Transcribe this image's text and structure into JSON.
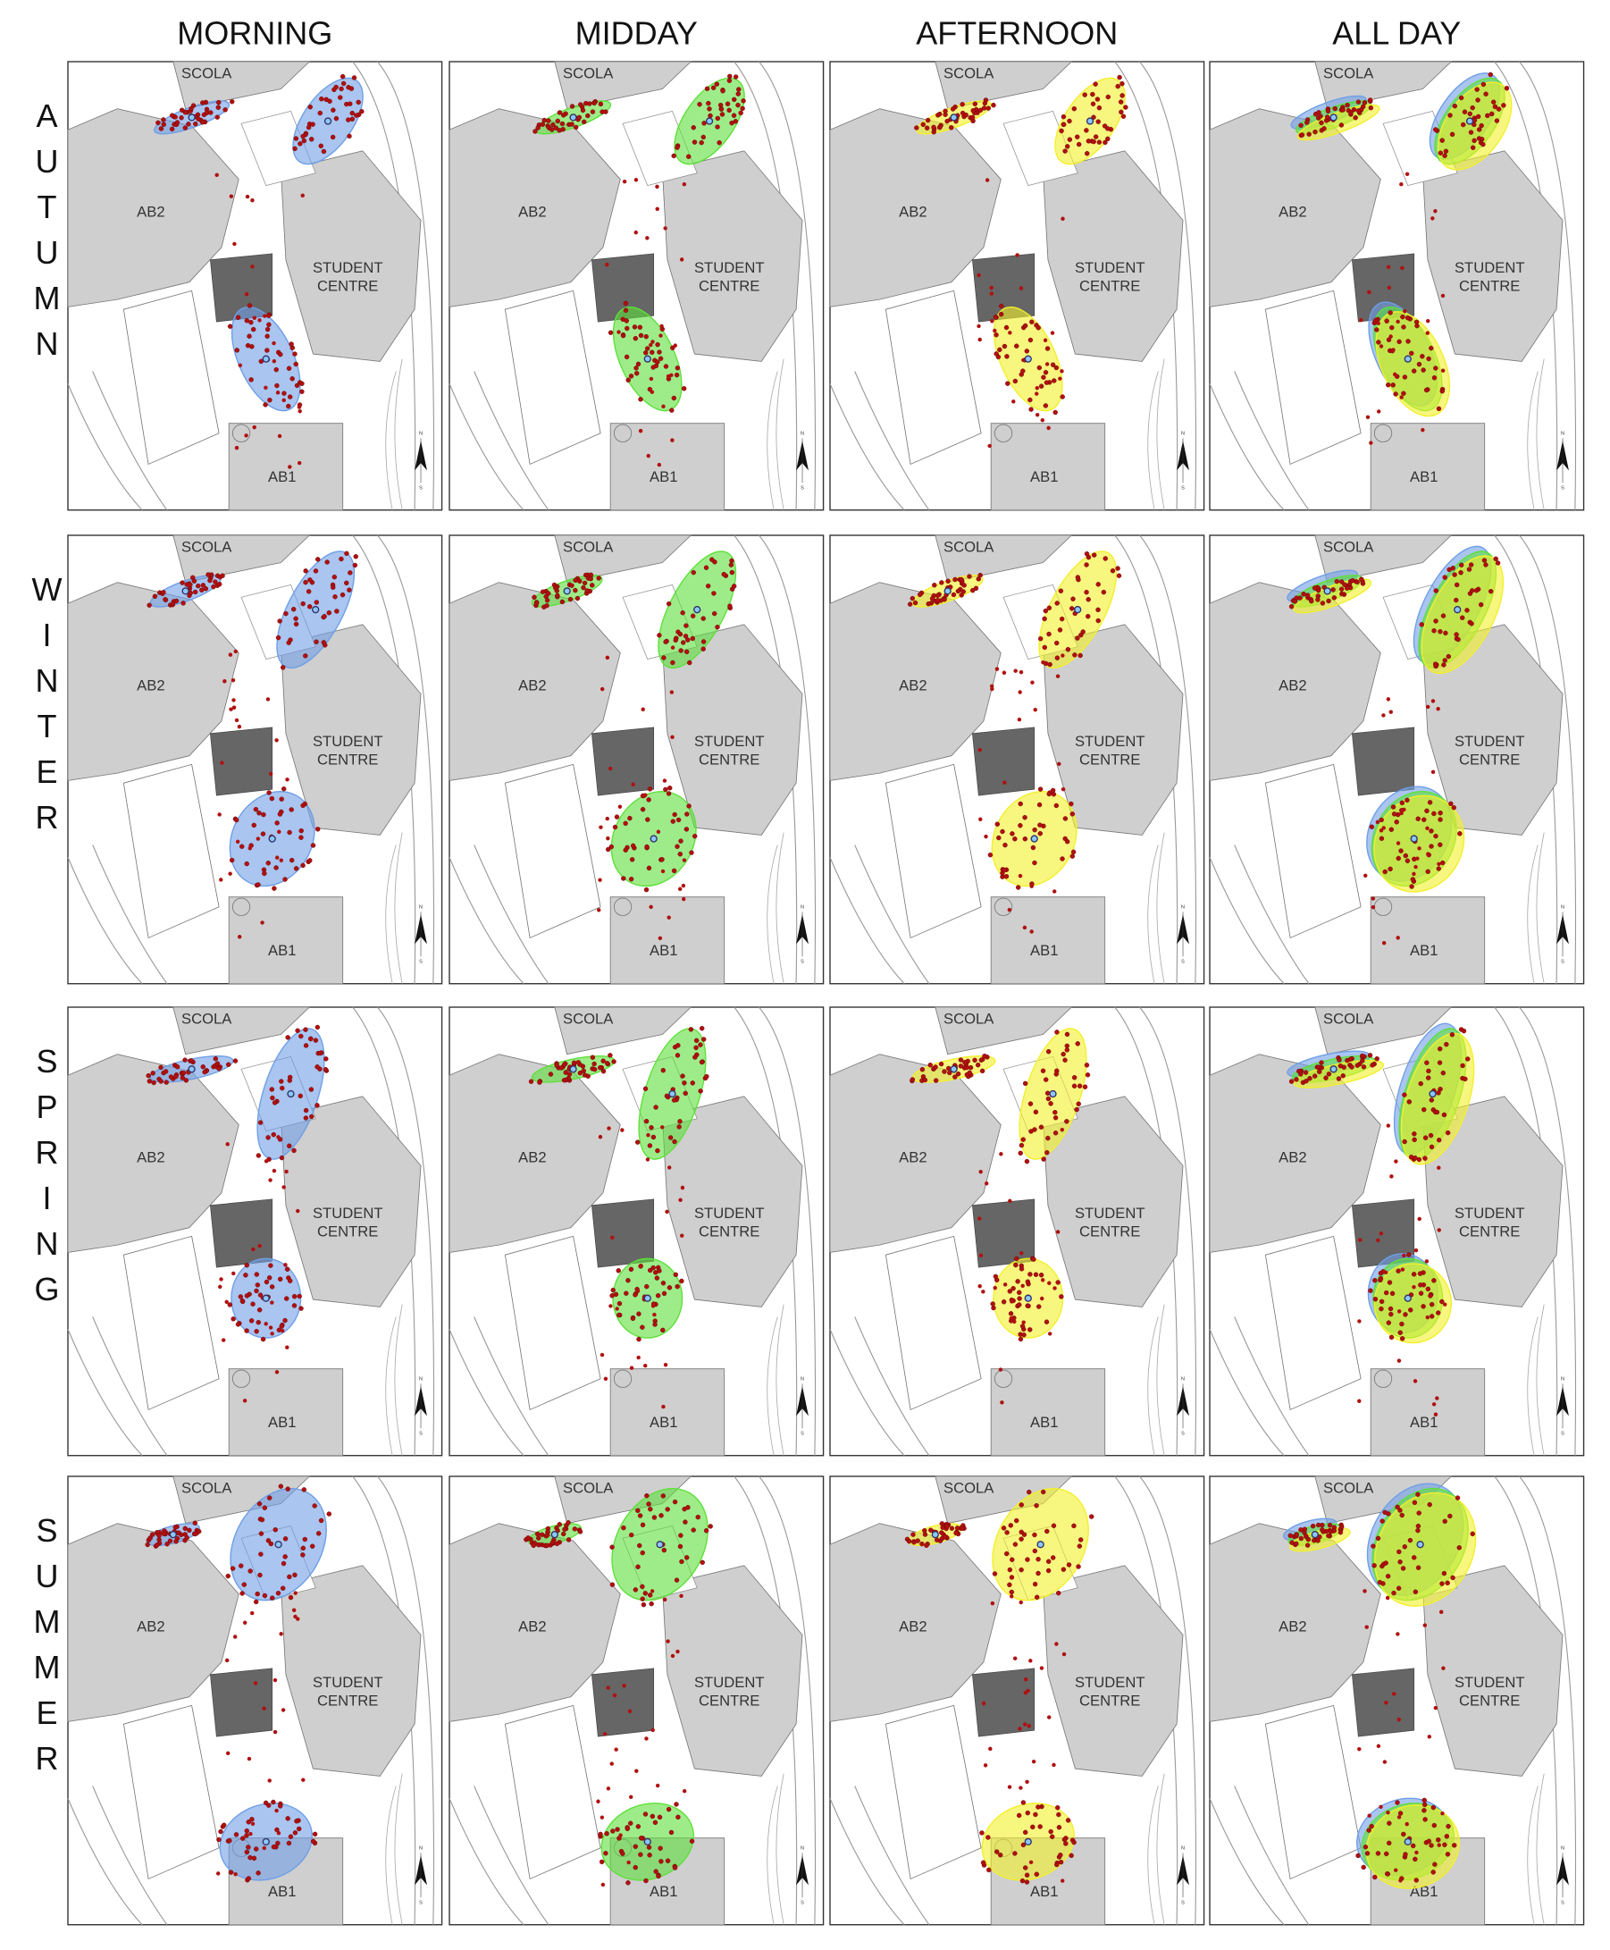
{
  "columns": [
    "MORNING",
    "MIDDAY",
    "AFTERNOON",
    "ALL DAY"
  ],
  "rows": [
    "AUTUMN",
    "WINTER",
    "SPRING",
    "SUMMER"
  ],
  "map_labels": {
    "scola": "SCOLA",
    "ab2": "AB2",
    "student_centre": [
      "STUDENT",
      "CENTRE"
    ],
    "ab1": "AB1"
  },
  "north_arrow": {
    "n": "N",
    "s": "S"
  }
}
